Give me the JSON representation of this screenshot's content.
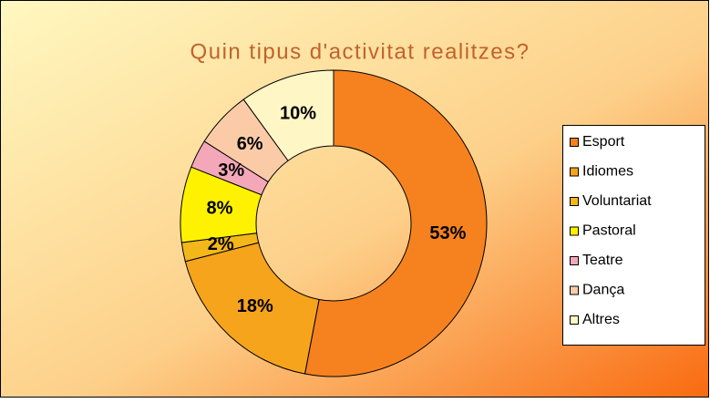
{
  "chart_data": {
    "type": "donut",
    "title": "Quin tipus d'activitat realitzes?",
    "categories": [
      "Esport",
      "Idiomes",
      "Voluntariat",
      "Pastoral",
      "Teatre",
      "Dança",
      "Altres"
    ],
    "values": [
      53,
      18,
      2,
      8,
      3,
      6,
      10
    ],
    "value_labels": [
      "53%",
      "18%",
      "2%",
      "8%",
      "3%",
      "6%",
      "10%"
    ],
    "colors": [
      "#F5821F",
      "#F7A41D",
      "#F4B71A",
      "#FFF200",
      "#F4A7B9",
      "#FBCBA7",
      "#FFF6C6"
    ],
    "legend": "right"
  }
}
